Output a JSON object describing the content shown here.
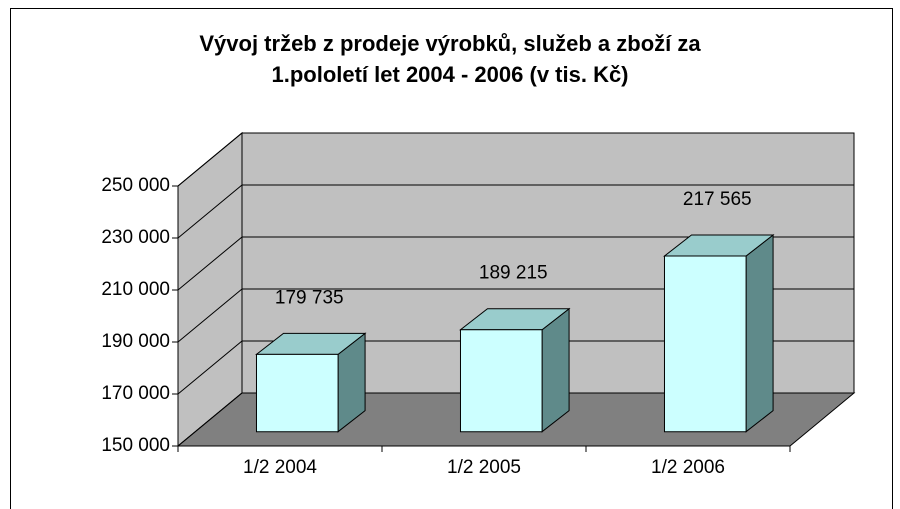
{
  "chart_data": {
    "type": "bar3d",
    "title": [
      "Vývoj tržeb z prodeje výrobků, služeb a zboží za",
      "1.pololetí let 2004 - 2006 (v tis. Kč)"
    ],
    "categories": [
      "1/2 2004",
      "1/2 2005",
      "1/2 2006"
    ],
    "values": [
      179735,
      189215,
      217565
    ],
    "value_labels": [
      "179 735",
      "189 215",
      "217 565"
    ],
    "color": "#ccffff",
    "ylim": [
      150000,
      250000
    ],
    "yticks": [
      {
        "value": 150000,
        "label": "150 000"
      },
      {
        "value": 170000,
        "label": "170 000"
      },
      {
        "value": 190000,
        "label": "190 000"
      },
      {
        "value": 210000,
        "label": "210 000"
      },
      {
        "value": 230000,
        "label": "230 000"
      },
      {
        "value": 250000,
        "label": "250 000"
      }
    ],
    "grid": true
  }
}
